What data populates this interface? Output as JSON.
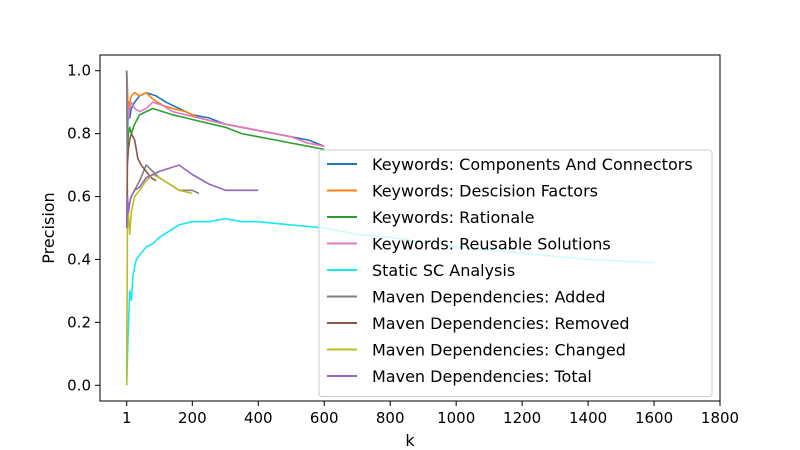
{
  "chart_data": {
    "type": "line",
    "xlabel": "k",
    "ylabel": "Precision",
    "xlim": [
      -80,
      1800
    ],
    "ylim": [
      -0.05,
      1.05
    ],
    "x_ticks": [
      {
        "value": 1,
        "label": "1"
      },
      {
        "value": 200,
        "label": "200"
      },
      {
        "value": 400,
        "label": "400"
      },
      {
        "value": 600,
        "label": "600"
      },
      {
        "value": 800,
        "label": "800"
      },
      {
        "value": 1000,
        "label": "1000"
      },
      {
        "value": 1200,
        "label": "1200"
      },
      {
        "value": 1400,
        "label": "1400"
      },
      {
        "value": 1600,
        "label": "1600"
      },
      {
        "value": 1800,
        "label": "1800"
      }
    ],
    "y_ticks": [
      {
        "value": 0.0,
        "label": "0.0"
      },
      {
        "value": 0.2,
        "label": "0.2"
      },
      {
        "value": 0.4,
        "label": "0.4"
      },
      {
        "value": 0.6,
        "label": "0.6"
      },
      {
        "value": 0.8,
        "label": "0.8"
      },
      {
        "value": 1.0,
        "label": "1.0"
      }
    ],
    "grid": false,
    "legend_position": "center-right",
    "series": [
      {
        "name": "Keywords: Components And Connectors",
        "color": "#1f77b4",
        "x": [
          1,
          3,
          6,
          10,
          15,
          25,
          40,
          60,
          90,
          120,
          160,
          200,
          250,
          300,
          350,
          400,
          450,
          500,
          550,
          600
        ],
        "y": [
          1.0,
          0.8,
          0.9,
          0.85,
          0.88,
          0.9,
          0.92,
          0.93,
          0.92,
          0.9,
          0.88,
          0.86,
          0.85,
          0.83,
          0.82,
          0.81,
          0.8,
          0.79,
          0.78,
          0.76
        ]
      },
      {
        "name": "Keywords: Descision Factors",
        "color": "#ff7f0e",
        "x": [
          1,
          3,
          6,
          10,
          15,
          25,
          40,
          60,
          80,
          110,
          140,
          180,
          220,
          260,
          300,
          350,
          400,
          450,
          500,
          550,
          600
        ],
        "y": [
          1.0,
          0.95,
          0.85,
          0.9,
          0.92,
          0.93,
          0.92,
          0.93,
          0.91,
          0.89,
          0.88,
          0.87,
          0.85,
          0.84,
          0.83,
          0.82,
          0.81,
          0.8,
          0.79,
          0.77,
          0.76
        ]
      },
      {
        "name": "Keywords: Rationale",
        "color": "#2ca02c",
        "x": [
          1,
          3,
          6,
          10,
          15,
          25,
          40,
          60,
          80,
          110,
          140,
          180,
          220,
          260,
          300,
          350,
          400,
          450,
          500,
          550,
          600
        ],
        "y": [
          1.0,
          0.75,
          0.8,
          0.82,
          0.8,
          0.83,
          0.86,
          0.87,
          0.88,
          0.87,
          0.86,
          0.85,
          0.84,
          0.83,
          0.82,
          0.8,
          0.79,
          0.78,
          0.77,
          0.76,
          0.75
        ]
      },
      {
        "name": "Keywords: Reusable Solutions",
        "color": "#e377c2",
        "x": [
          1,
          3,
          6,
          10,
          15,
          25,
          40,
          60,
          80,
          110,
          140,
          180,
          220,
          260,
          300,
          350,
          400,
          450,
          500,
          550,
          600
        ],
        "y": [
          1.0,
          0.9,
          0.85,
          0.88,
          0.9,
          0.88,
          0.87,
          0.88,
          0.9,
          0.89,
          0.87,
          0.86,
          0.85,
          0.84,
          0.83,
          0.82,
          0.81,
          0.8,
          0.79,
          0.77,
          0.76
        ]
      },
      {
        "name": "Static SC Analysis",
        "color": "#17e8f0",
        "x": [
          1,
          5,
          10,
          15,
          20,
          30,
          45,
          60,
          80,
          100,
          130,
          160,
          200,
          250,
          300,
          350,
          400,
          500,
          600,
          700,
          800,
          1000,
          1200,
          1400,
          1600
        ],
        "y": [
          0.0,
          0.15,
          0.3,
          0.27,
          0.35,
          0.4,
          0.42,
          0.44,
          0.45,
          0.47,
          0.49,
          0.51,
          0.52,
          0.52,
          0.53,
          0.52,
          0.52,
          0.51,
          0.5,
          0.48,
          0.47,
          0.44,
          0.42,
          0.4,
          0.39
        ]
      },
      {
        "name": "Maven Dependencies: Added",
        "color": "#7f7f7f",
        "x": [
          1,
          3,
          6,
          10,
          15,
          25,
          40,
          60,
          80,
          100,
          130,
          160,
          200,
          220
        ],
        "y": [
          1.0,
          0.6,
          0.55,
          0.58,
          0.6,
          0.62,
          0.65,
          0.7,
          0.68,
          0.66,
          0.64,
          0.62,
          0.62,
          0.61
        ]
      },
      {
        "name": "Maven Dependencies: Removed",
        "color": "#8c564b",
        "x": [
          1,
          3,
          6,
          10,
          15,
          25,
          35,
          45,
          60,
          75,
          90
        ],
        "y": [
          0.5,
          0.7,
          0.75,
          0.78,
          0.8,
          0.78,
          0.72,
          0.7,
          0.68,
          0.66,
          0.65
        ]
      },
      {
        "name": "Maven Dependencies: Changed",
        "color": "#bcbd22",
        "x": [
          1,
          3,
          6,
          10,
          15,
          25,
          40,
          60,
          80,
          100,
          130,
          160,
          200
        ],
        "y": [
          0.0,
          0.5,
          0.55,
          0.48,
          0.55,
          0.6,
          0.62,
          0.65,
          0.67,
          0.66,
          0.64,
          0.62,
          0.61
        ]
      },
      {
        "name": "Maven Dependencies: Total",
        "color": "#9467bd",
        "x": [
          1,
          3,
          6,
          10,
          15,
          25,
          40,
          60,
          80,
          100,
          130,
          160,
          200,
          250,
          300,
          350,
          400
        ],
        "y": [
          0.5,
          0.6,
          0.55,
          0.58,
          0.6,
          0.62,
          0.63,
          0.66,
          0.67,
          0.68,
          0.69,
          0.7,
          0.67,
          0.64,
          0.62,
          0.62,
          0.62
        ]
      }
    ]
  }
}
